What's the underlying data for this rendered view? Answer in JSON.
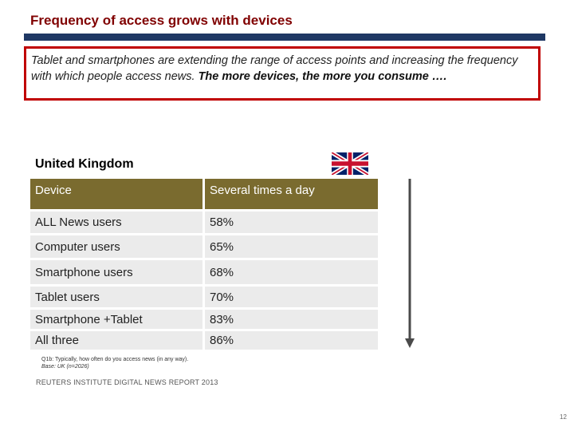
{
  "header": {
    "title": "Frequency of access grows with devices"
  },
  "callout": {
    "intro": "Tablet and smartphones are extending the range of access points and increasing the frequency with which people access news.",
    "emphasis": "The more devices, the more you consume …."
  },
  "country": {
    "name": "United Kingdom",
    "flag_icon": "uk-flag-icon"
  },
  "table": {
    "headers": [
      "Device",
      "Several times a day"
    ],
    "rows": [
      {
        "device": "ALL News users",
        "value": "58%"
      },
      {
        "device": "Computer users",
        "value": "65%"
      },
      {
        "device": "Smartphone users",
        "value": "68%"
      },
      {
        "device": "Tablet users",
        "value": "70%"
      },
      {
        "device": "Smartphone +Tablet",
        "value": "83%"
      },
      {
        "device": "All three",
        "value": "86%"
      }
    ]
  },
  "footnote": {
    "question": "Q1b: Typically, how often do you access news (in any way).",
    "base": "Base: UK (n=2026)"
  },
  "source": "REUTERS INSTITUTE DIGITAL NEWS REPORT 2013",
  "page_number": "12",
  "colors": {
    "title": "#800000",
    "rule": "#1f3864",
    "callout_border": "#c00000",
    "table_header": "#7a6b2f",
    "table_cell": "#ebebeb",
    "arrow": "#4a4a4a"
  }
}
